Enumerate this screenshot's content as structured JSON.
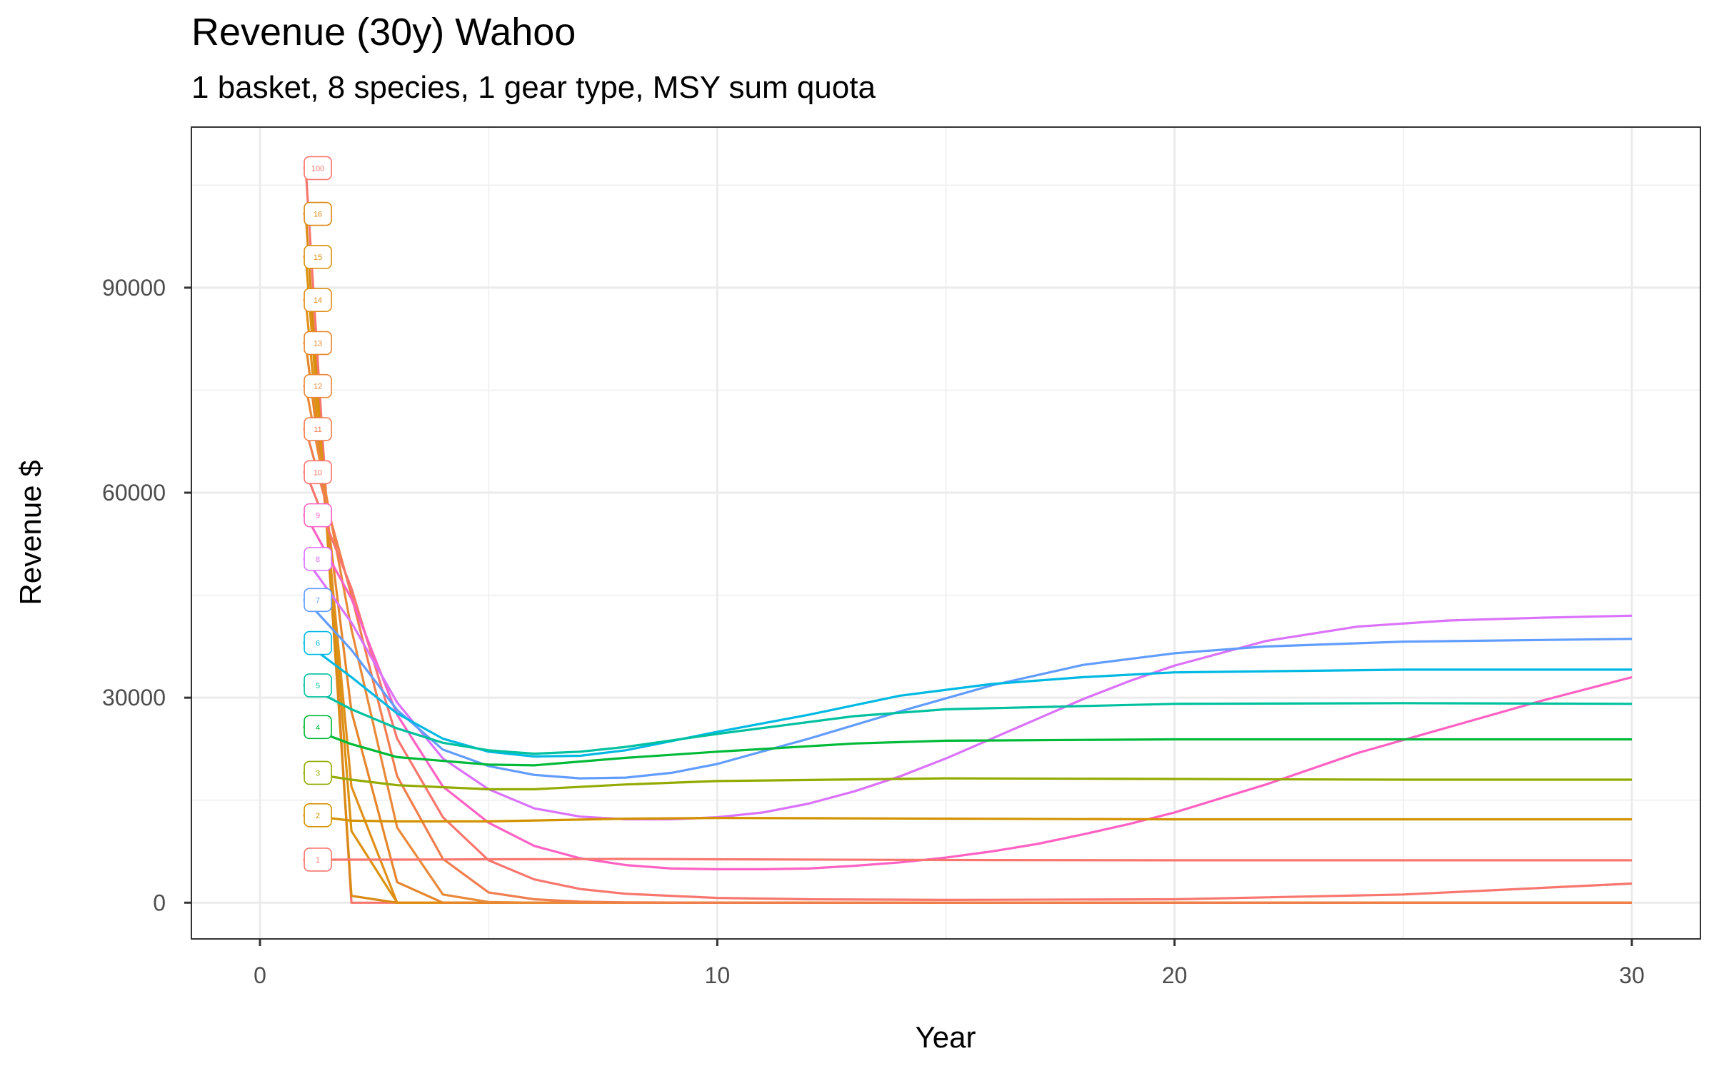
{
  "chart_data": {
    "type": "line",
    "title": "Revenue (30y) Wahoo",
    "subtitle": "1 basket, 8 species, 1 gear type, MSY sum quota",
    "xlabel": "Year",
    "ylabel": "Revenue $",
    "xlim": [
      -1.5,
      31.5
    ],
    "ylim": [
      -5300,
      113500
    ],
    "x_ticks": [
      0,
      10,
      20,
      30
    ],
    "x_tick_labels": [
      "0",
      "10",
      "20",
      "30"
    ],
    "y_ticks": [
      0,
      30000,
      60000,
      90000
    ],
    "y_tick_labels": [
      "0",
      "30000",
      "60000",
      "90000"
    ],
    "grid": true,
    "legend": "none (direct labels at line start)",
    "series": [
      {
        "name": "1",
        "color": "#F8766D",
        "points": [
          [
            1,
            6300
          ],
          [
            2,
            6300
          ],
          [
            3,
            6300
          ],
          [
            5,
            6350
          ],
          [
            8,
            6400
          ],
          [
            10,
            6350
          ],
          [
            15,
            6250
          ],
          [
            20,
            6200
          ],
          [
            25,
            6200
          ],
          [
            30,
            6200
          ]
        ]
      },
      {
        "name": "2",
        "color": "#D39200",
        "points": [
          [
            1,
            12800
          ],
          [
            2,
            12000
          ],
          [
            3,
            11900
          ],
          [
            5,
            11900
          ],
          [
            8,
            12300
          ],
          [
            10,
            12400
          ],
          [
            15,
            12300
          ],
          [
            20,
            12200
          ],
          [
            25,
            12200
          ],
          [
            30,
            12200
          ]
        ]
      },
      {
        "name": "3",
        "color": "#93AA00",
        "points": [
          [
            1,
            19000
          ],
          [
            2,
            18000
          ],
          [
            3,
            17200
          ],
          [
            5,
            16600
          ],
          [
            6,
            16600
          ],
          [
            8,
            17300
          ],
          [
            10,
            17800
          ],
          [
            15,
            18200
          ],
          [
            20,
            18100
          ],
          [
            25,
            18000
          ],
          [
            30,
            18000
          ]
        ]
      },
      {
        "name": "4",
        "color": "#00BA38",
        "points": [
          [
            1,
            25700
          ],
          [
            2,
            23200
          ],
          [
            3,
            21300
          ],
          [
            5,
            20200
          ],
          [
            6,
            20100
          ],
          [
            8,
            21200
          ],
          [
            10,
            22100
          ],
          [
            13,
            23300
          ],
          [
            15,
            23700
          ],
          [
            20,
            23900
          ],
          [
            25,
            23900
          ],
          [
            30,
            23900
          ]
        ]
      },
      {
        "name": "5",
        "color": "#00C19F",
        "points": [
          [
            1,
            31800
          ],
          [
            2,
            28300
          ],
          [
            3,
            25500
          ],
          [
            4,
            23400
          ],
          [
            5,
            22300
          ],
          [
            6,
            21800
          ],
          [
            7,
            22100
          ],
          [
            8,
            22800
          ],
          [
            10,
            24700
          ],
          [
            13,
            27300
          ],
          [
            15,
            28300
          ],
          [
            20,
            29100
          ],
          [
            25,
            29200
          ],
          [
            30,
            29100
          ]
        ]
      },
      {
        "name": "6",
        "color": "#00B9E3",
        "points": [
          [
            1,
            38000
          ],
          [
            2,
            33000
          ],
          [
            3,
            27700
          ],
          [
            4,
            24000
          ],
          [
            5,
            22100
          ],
          [
            6,
            21400
          ],
          [
            7,
            21500
          ],
          [
            8,
            22300
          ],
          [
            10,
            25000
          ],
          [
            12,
            27500
          ],
          [
            14,
            30300
          ],
          [
            16,
            32000
          ],
          [
            18,
            33000
          ],
          [
            20,
            33700
          ],
          [
            25,
            34100
          ],
          [
            30,
            34100
          ]
        ]
      },
      {
        "name": "7",
        "color": "#619CFF",
        "points": [
          [
            1,
            44300
          ],
          [
            2,
            37000
          ],
          [
            3,
            28200
          ],
          [
            4,
            22400
          ],
          [
            5,
            20000
          ],
          [
            6,
            18700
          ],
          [
            7,
            18200
          ],
          [
            8,
            18300
          ],
          [
            9,
            19000
          ],
          [
            10,
            20300
          ],
          [
            12,
            24000
          ],
          [
            14,
            28000
          ],
          [
            16,
            31800
          ],
          [
            18,
            34800
          ],
          [
            20,
            36500
          ],
          [
            22,
            37500
          ],
          [
            25,
            38200
          ],
          [
            30,
            38600
          ]
        ]
      },
      {
        "name": "8",
        "color": "#DB72FB",
        "points": [
          [
            1,
            50300
          ],
          [
            2,
            41000
          ],
          [
            3,
            29300
          ],
          [
            4,
            21100
          ],
          [
            5,
            16600
          ],
          [
            6,
            13800
          ],
          [
            7,
            12600
          ],
          [
            8,
            12200
          ],
          [
            9,
            12200
          ],
          [
            10,
            12500
          ],
          [
            11,
            13200
          ],
          [
            12,
            14500
          ],
          [
            13,
            16300
          ],
          [
            14,
            18500
          ],
          [
            15,
            21100
          ],
          [
            16,
            24000
          ],
          [
            17,
            26900
          ],
          [
            18,
            29800
          ],
          [
            19,
            32400
          ],
          [
            20,
            34700
          ],
          [
            22,
            38300
          ],
          [
            24,
            40400
          ],
          [
            26,
            41300
          ],
          [
            28,
            41700
          ],
          [
            30,
            42000
          ]
        ]
      },
      {
        "name": "9",
        "color": "#FF61C3",
        "points": [
          [
            1,
            56700
          ],
          [
            2,
            44500
          ],
          [
            3,
            27500
          ],
          [
            4,
            17000
          ],
          [
            5,
            11700
          ],
          [
            6,
            8300
          ],
          [
            7,
            6500
          ],
          [
            8,
            5500
          ],
          [
            9,
            5000
          ],
          [
            10,
            4900
          ],
          [
            11,
            4900
          ],
          [
            12,
            5000
          ],
          [
            13,
            5400
          ],
          [
            14,
            5900
          ],
          [
            15,
            6600
          ],
          [
            16,
            7500
          ],
          [
            17,
            8600
          ],
          [
            18,
            10000
          ],
          [
            19,
            11500
          ],
          [
            20,
            13200
          ],
          [
            22,
            17300
          ],
          [
            24,
            21900
          ],
          [
            26,
            25700
          ],
          [
            28,
            29500
          ],
          [
            30,
            33000
          ]
        ]
      },
      {
        "name": "10",
        "color": "#F8766D",
        "points": [
          [
            1,
            63000
          ],
          [
            2,
            46000
          ],
          [
            3,
            24000
          ],
          [
            4,
            12500
          ],
          [
            5,
            6200
          ],
          [
            6,
            3400
          ],
          [
            7,
            2000
          ],
          [
            8,
            1300
          ],
          [
            10,
            700
          ],
          [
            12,
            500
          ],
          [
            15,
            400
          ],
          [
            20,
            500
          ],
          [
            25,
            1200
          ],
          [
            30,
            2800
          ]
        ]
      },
      {
        "name": "11",
        "color": "#F07E4E",
        "points": [
          [
            1,
            69300
          ],
          [
            2,
            45000
          ],
          [
            3,
            18500
          ],
          [
            4,
            6400
          ],
          [
            5,
            1500
          ],
          [
            6,
            500
          ],
          [
            7,
            150
          ],
          [
            8,
            50
          ],
          [
            10,
            0
          ],
          [
            15,
            0
          ],
          [
            20,
            0
          ],
          [
            30,
            0
          ]
        ]
      },
      {
        "name": "12",
        "color": "#E98A3A",
        "points": [
          [
            1,
            75600
          ],
          [
            2,
            40000
          ],
          [
            3,
            11000
          ],
          [
            4,
            1200
          ],
          [
            5,
            100
          ],
          [
            6,
            0
          ],
          [
            10,
            0
          ],
          [
            20,
            0
          ],
          [
            30,
            0
          ]
        ]
      },
      {
        "name": "13",
        "color": "#E6862C",
        "points": [
          [
            1,
            81900
          ],
          [
            2,
            28000
          ],
          [
            3,
            3000
          ],
          [
            4,
            0
          ],
          [
            10,
            0
          ],
          [
            20,
            0
          ],
          [
            30,
            0
          ]
        ]
      },
      {
        "name": "14",
        "color": "#E0901A",
        "points": [
          [
            1,
            88200
          ],
          [
            2,
            17000
          ],
          [
            3,
            0
          ],
          [
            10,
            0
          ],
          [
            20,
            0
          ],
          [
            30,
            0
          ]
        ]
      },
      {
        "name": "15",
        "color": "#DB9210",
        "points": [
          [
            1,
            94500
          ],
          [
            2,
            10500
          ],
          [
            3,
            0
          ],
          [
            10,
            0
          ],
          [
            20,
            0
          ],
          [
            30,
            0
          ]
        ]
      },
      {
        "name": "16",
        "color": "#DA8A14",
        "points": [
          [
            1,
            100800
          ],
          [
            2,
            1000
          ],
          [
            3,
            0
          ],
          [
            10,
            0
          ],
          [
            20,
            0
          ],
          [
            30,
            0
          ]
        ]
      },
      {
        "name": "100",
        "color": "#F8766D",
        "points": [
          [
            1,
            107500
          ],
          [
            2,
            0
          ],
          [
            3,
            0
          ],
          [
            10,
            0
          ],
          [
            20,
            0
          ],
          [
            30,
            0
          ]
        ]
      }
    ]
  }
}
